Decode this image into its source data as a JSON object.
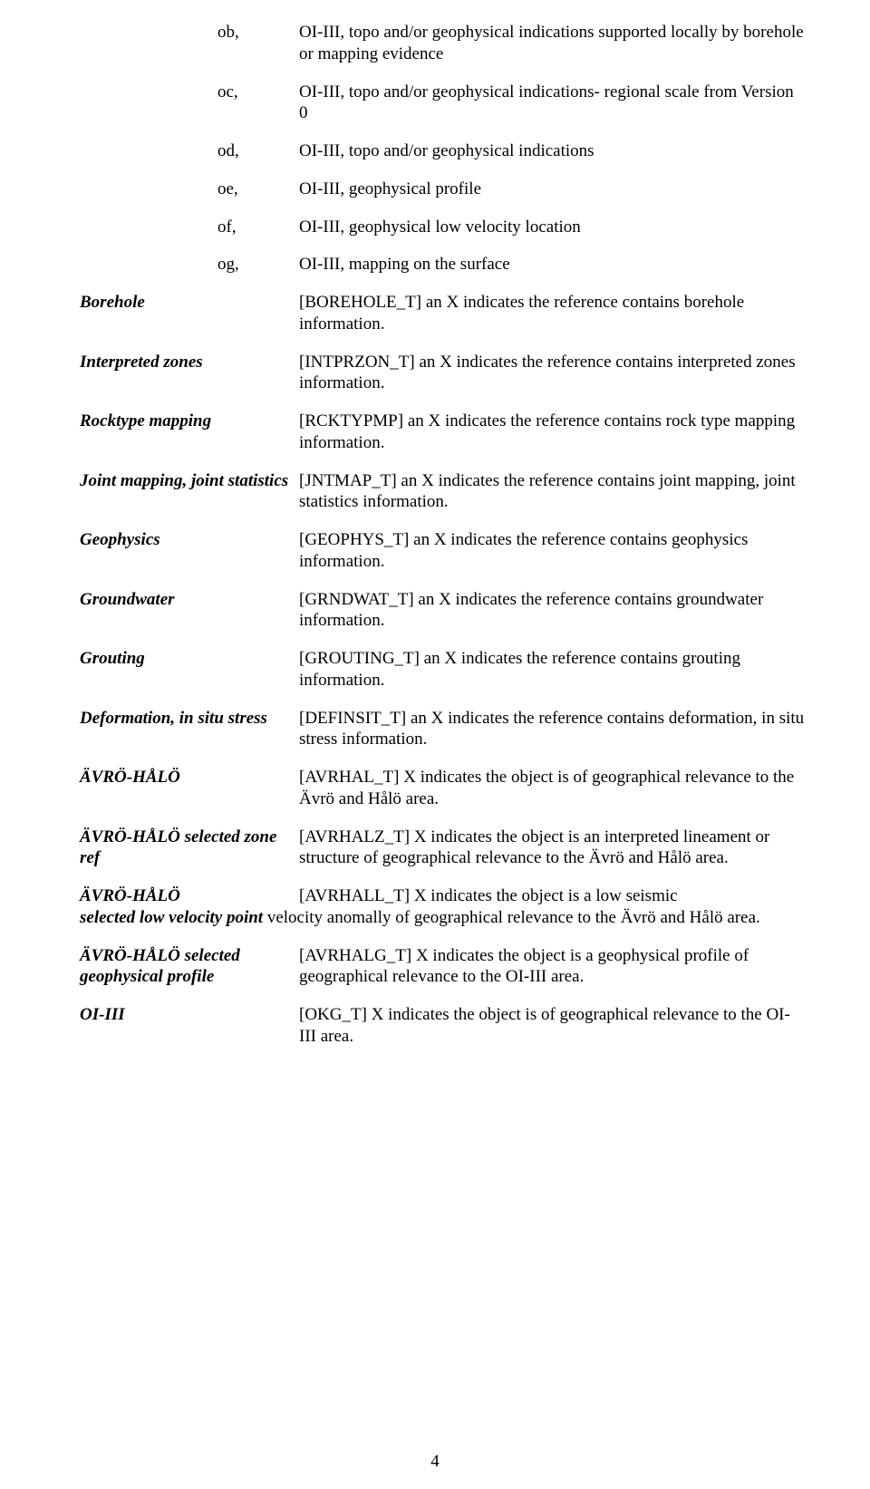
{
  "sub": {
    "ob": {
      "code": "ob,",
      "desc": "OI-III, topo and/or geophysical indications supported locally by borehole or mapping evidence"
    },
    "oc": {
      "code": "oc,",
      "desc": "OI-III, topo and/or geophysical indications- regional scale from Version 0"
    },
    "od": {
      "code": "od,",
      "desc": "OI-III, topo and/or geophysical indications"
    },
    "oe": {
      "code": "oe,",
      "desc": "OI-III, geophysical profile"
    },
    "of": {
      "code": "of,",
      "desc": "OI-III, geophysical low velocity location"
    },
    "og": {
      "code": "og,",
      "desc": "OI-III, mapping on the surface"
    }
  },
  "fields": {
    "borehole": {
      "label": "Borehole",
      "desc": "[BOREHOLE_T] an X indicates the reference contains borehole information."
    },
    "intprzon": {
      "label": "Interpreted zones",
      "desc": "[INTPRZON_T] an X indicates the reference contains interpreted zones information."
    },
    "rcktypmp": {
      "label": "Rocktype mapping",
      "desc": "[RCKTYPMP] an X indicates the reference contains rock type mapping information."
    },
    "jntmap": {
      "label": "Joint mapping, joint statistics",
      "desc": "[JNTMAP_T] an X indicates the reference contains joint mapping, joint statistics information."
    },
    "geophys": {
      "label": "Geophysics",
      "desc": "[GEOPHYS_T] an X indicates the reference contains geophysics information."
    },
    "grndwat": {
      "label": "Groundwater",
      "desc": "[GRNDWAT_T] an X indicates the reference contains groundwater information."
    },
    "grouting": {
      "label": "Grouting",
      "desc": "[GROUTING_T] an X indicates the reference contains grouting information."
    },
    "definsit": {
      "label": "Deformation, in situ stress",
      "desc": "[DEFINSIT_T] an X indicates the reference contains deformation, in situ stress information."
    },
    "avrhal": {
      "label": "ÄVRÖ-HÅLÖ",
      "desc": "[AVRHAL_T] X indicates the object is of geographical relevance to the Ävrö and Hålö area."
    },
    "avrhalz": {
      "label": "ÄVRÖ-HÅLÖ selected zone ref",
      "desc": "[AVRHALZ_T] X indicates the object is an interpreted lineament or structure of geographical relevance to the Ävrö and Hålö area."
    },
    "avrhall": {
      "label_line1": "ÄVRÖ-HÅLÖ",
      "label_line2": "selected low velocity point",
      "desc_line1": "[AVRHALL_T] X indicates the object is a low seismic",
      "desc_rest": "velocity anomally of geographical relevance to the Ävrö and Hålö area."
    },
    "avrhalg": {
      "label": "ÄVRÖ-HÅLÖ selected geophysical profile",
      "desc": "[AVRHALG_T] X indicates the object is a geophysical profile of  geographical relevance to the OI-III area."
    },
    "okg": {
      "label": "OI-III",
      "desc": "[OKG_T] X indicates the object is of geographical relevance to the OI-III area."
    }
  },
  "page_number": "4"
}
